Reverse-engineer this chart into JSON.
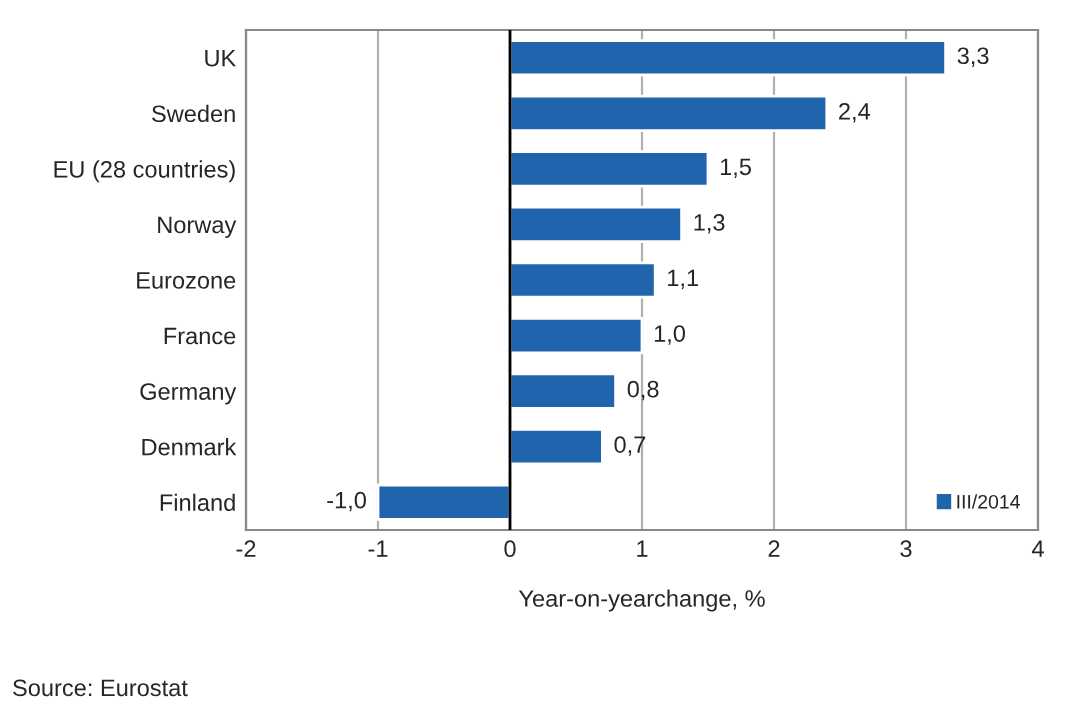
{
  "chart_data": {
    "type": "bar",
    "orientation": "horizontal",
    "categories": [
      "UK",
      "Sweden",
      "EU (28 countries)",
      "Norway",
      "Eurozone",
      "France",
      "Germany",
      "Denmark",
      "Finland"
    ],
    "series": [
      {
        "name": "III/2014",
        "color": "#1f64ad",
        "values": [
          3.3,
          2.4,
          1.5,
          1.3,
          1.1,
          1.0,
          0.8,
          0.7,
          -1.0
        ],
        "value_labels": [
          "3,3",
          "2,4",
          "1,5",
          "1,3",
          "1,1",
          "1,0",
          "0,8",
          "0,7",
          "-1,0"
        ]
      }
    ],
    "xlim": [
      -2,
      4
    ],
    "xticks": [
      {
        "value": -2,
        "label": "-2"
      },
      {
        "value": -1,
        "label": "-1"
      },
      0,
      1,
      2,
      3,
      4
    ],
    "xlabel": "Year-on-yearchange, %",
    "grid": "x",
    "legend": "bottom right",
    "ref_lines": [
      {
        "axis": "x",
        "value": 0,
        "color": "#000000"
      }
    ],
    "annotations": [
      "Source: Eurostat"
    ]
  }
}
